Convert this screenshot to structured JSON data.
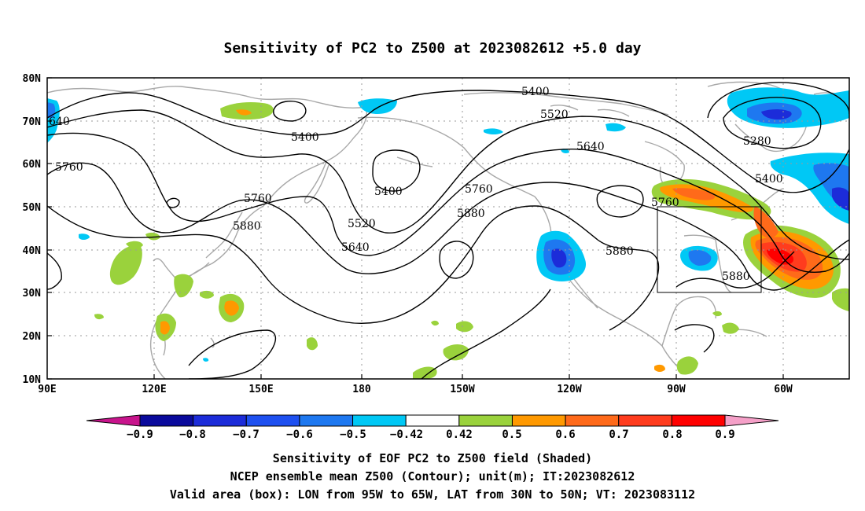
{
  "title": "Sensitivity of PC2 to Z500 at 2023082612 +5.0 day",
  "lat_ticks": [
    "80N",
    "70N",
    "60N",
    "50N",
    "40N",
    "30N",
    "20N",
    "10N"
  ],
  "lon_ticks": [
    "90E",
    "120E",
    "150E",
    "180",
    "150W",
    "120W",
    "90W",
    "60W"
  ],
  "contour_labels": {
    "c5280": "5280",
    "c5400a": "5400",
    "c5400b": "5400",
    "c5400c": "5400",
    "c5400d": "5400",
    "c5520a": "5520",
    "c5520b": "5520",
    "c5640a": "5640",
    "c5640b": "5640",
    "c5760a": "5760",
    "c5760b": "5760",
    "c5760c": "5760",
    "c5760d": "5760",
    "c5880a": "5880",
    "c5880b": "5880",
    "c5880c": "5880",
    "c5880d": "5880",
    "c5640edge": "640"
  },
  "colorbar": {
    "labels": [
      "−0.9",
      "−0.8",
      "−0.7",
      "−0.6",
      "−0.5",
      "−0.42",
      "0.42",
      "0.5",
      "0.6",
      "0.7",
      "0.8",
      "0.9"
    ],
    "colors": [
      "#0a0a9c",
      "#1c2cd9",
      "#1e50f0",
      "#1e78f0",
      "#00c8f5",
      "#ffffff",
      "#9ad23c",
      "#ff9900",
      "#ff6a1a",
      "#ff3c1e",
      "#ff0000"
    ],
    "left_tip_color": "#c8148c",
    "right_tip_color": "#f5a0c8"
  },
  "caption": {
    "line1": "Sensitivity of EOF PC2 to Z500 field (Shaded)",
    "line2": "NCEP ensemble mean Z500 (Contour); unit(m); IT:2023082612",
    "line3": "Valid area (box): LON from 95W to 65W, LAT from 30N to 50N; VT: 2023083112"
  }
}
